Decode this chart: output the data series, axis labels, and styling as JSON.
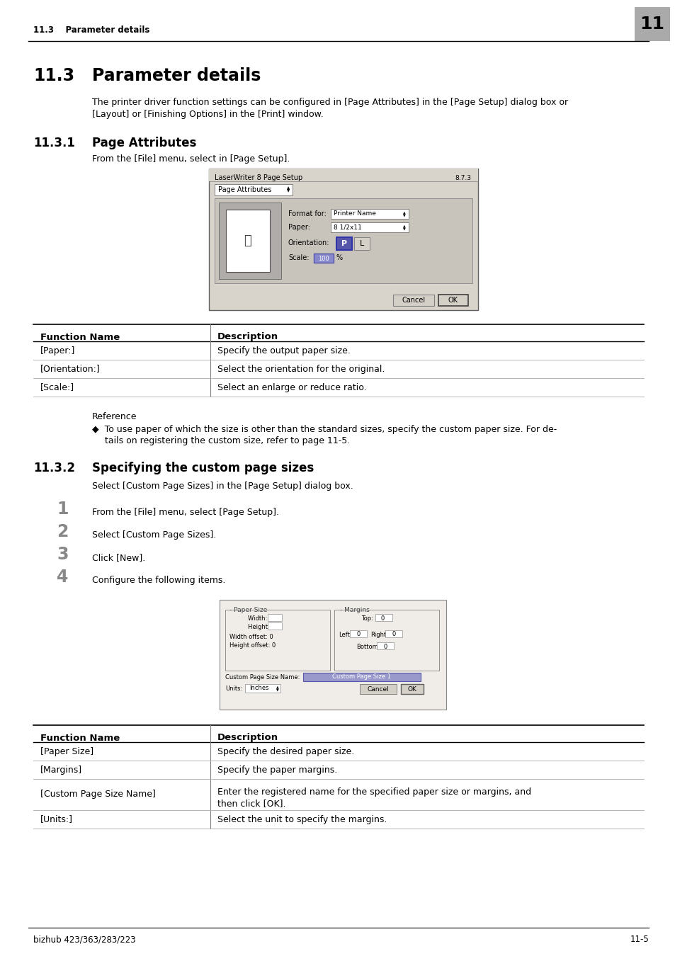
{
  "page_bg": "#ffffff",
  "header_text": "11.3    Parameter details",
  "header_number": "11",
  "header_number_bg": "#aaaaaa",
  "footer_left": "bizhub 423/363/283/223",
  "footer_right": "11-5",
  "section_title_num": "11.3",
  "section_title_name": "Parameter details",
  "section_intro_line1": "The printer driver function settings can be configured in [Page Attributes] in the [Page Setup] dialog box or",
  "section_intro_line2": "[Layout] or [Finishing Options] in the [Print] window.",
  "subsection1_num": "11.3.1",
  "subsection1_title": "Page Attributes",
  "subsection1_intro": "From the [File] menu, select in [Page Setup].",
  "table1_headers": [
    "Function Name",
    "Description"
  ],
  "table1_rows": [
    [
      "[Paper:]",
      "Specify the output paper size."
    ],
    [
      "[Orientation:]",
      "Select the orientation for the original."
    ],
    [
      "[Scale:]",
      "Select an enlarge or reduce ratio."
    ]
  ],
  "reference_label": "Reference",
  "reference_bullet": "To use paper of which the size is other than the standard sizes, specify the custom paper size. For de-",
  "reference_bullet2": "tails on registering the custom size, refer to page 11-5.",
  "subsection2_num": "11.3.2",
  "subsection2_title": "Specifying the custom page sizes",
  "subsection2_intro": "Select [Custom Page Sizes] in the [Page Setup] dialog box.",
  "steps": [
    "From the [File] menu, select [Page Setup].",
    "Select [Custom Page Sizes].",
    "Click [New].",
    "Configure the following items."
  ],
  "table2_headers": [
    "Function Name",
    "Description"
  ],
  "table2_rows": [
    [
      "[Paper Size]",
      "Specify the desired paper size.",
      1
    ],
    [
      "[Margins]",
      "Specify the paper margins.",
      1
    ],
    [
      "[Custom Page Size Name]",
      "Enter the registered name for the specified paper size or margins, and",
      2
    ],
    [
      "[Units:]",
      "Select the unit to specify the margins.",
      1
    ]
  ],
  "table2_row3_line2": "then click [OK]."
}
